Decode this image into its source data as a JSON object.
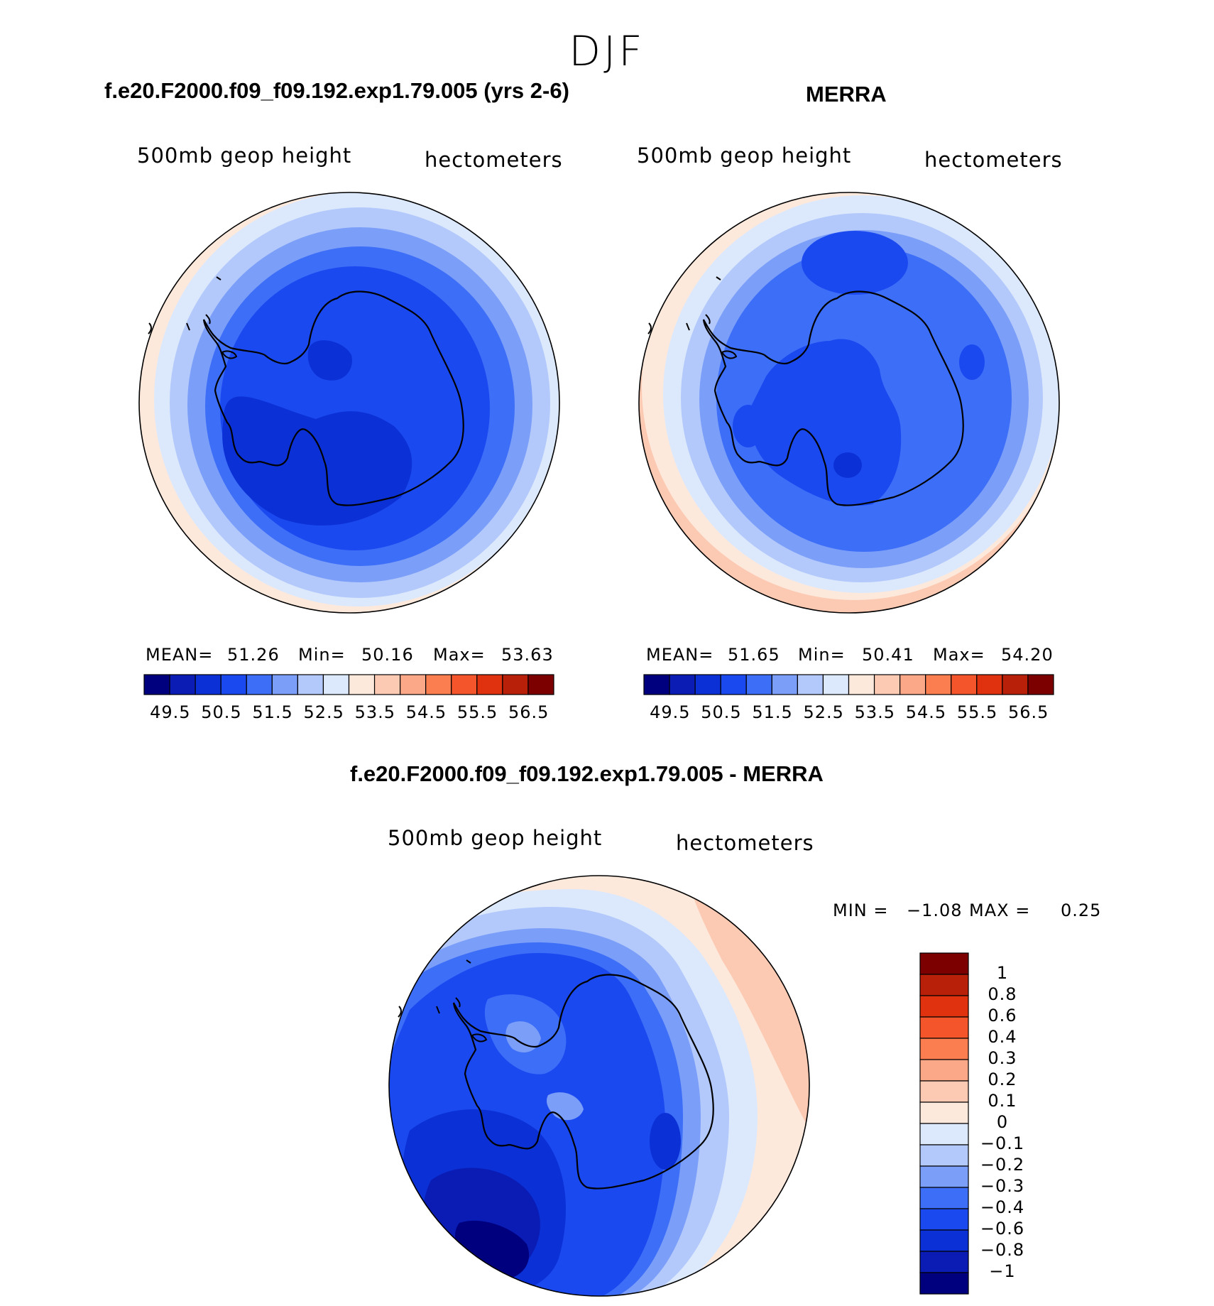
{
  "figure": {
    "season": "DJF"
  },
  "panels": [
    {
      "id": "model",
      "title": "f.e20.F2000.f09_f09.192.exp1.79.005 (yrs 2-6)",
      "variable": "500mb  geop  height",
      "units": "hectometers",
      "stats": {
        "mean_label": "MEAN=",
        "mean": "51.26",
        "min_label": "Min=",
        "min": "50.16",
        "max_label": "Max=",
        "max": "53.63"
      }
    },
    {
      "id": "obs",
      "title": "MERRA",
      "variable": "500mb  geop  height",
      "units": "hectometers",
      "stats": {
        "mean_label": "MEAN=",
        "mean": "51.65",
        "min_label": "Min=",
        "min": "50.41",
        "max_label": "Max=",
        "max": "54.20"
      }
    },
    {
      "id": "diff",
      "title": "f.e20.F2000.f09_f09.192.exp1.79.005 - MERRA",
      "variable": "500mb  geop  height",
      "units": "hectometers",
      "stats": {
        "min_label": "MIN =",
        "min": "−1.08",
        "max_label": "MAX =",
        "max": "0.25"
      }
    }
  ],
  "colorbar_abs": {
    "colors": [
      "#00007f",
      "#0a1cb4",
      "#0b31d6",
      "#1b49f0",
      "#3d6ef7",
      "#7b9ef9",
      "#b3c9fb",
      "#dce9fc",
      "#fde9dc",
      "#fcc9b2",
      "#fba888",
      "#fa7e50",
      "#f5552a",
      "#e0320f",
      "#b8200a",
      "#7d0000"
    ],
    "labels": [
      "49.5",
      "50.5",
      "51.5",
      "52.5",
      "53.5",
      "54.5",
      "55.5",
      "56.5"
    ]
  },
  "colorbar_diff": {
    "colors": [
      "#7d0000",
      "#b8200a",
      "#e0320f",
      "#f5552a",
      "#fa7e50",
      "#fba888",
      "#fcc9b2",
      "#fde9dc",
      "#dce9fc",
      "#b3c9fb",
      "#7b9ef9",
      "#3d6ef7",
      "#1b49f0",
      "#0b31d6",
      "#0a1cb4",
      "#00007f"
    ],
    "labels": [
      "1",
      "0.8",
      "0.6",
      "0.4",
      "0.3",
      "0.2",
      "0.1",
      "0",
      "−0.1",
      "−0.2",
      "−0.3",
      "−0.4",
      "−0.6",
      "−0.8",
      "−1"
    ]
  }
}
